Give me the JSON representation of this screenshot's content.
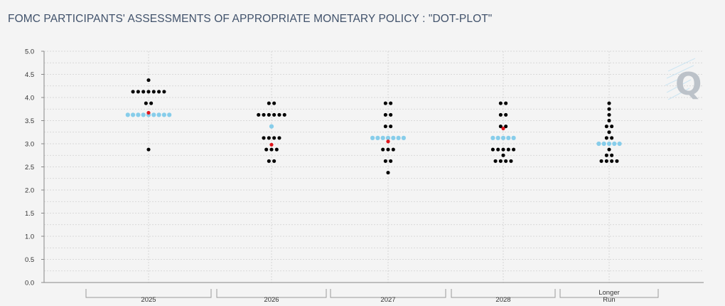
{
  "page": {
    "title": "FOMC PARTICIPANTS' ASSESSMENTS OF APPROPRIATE MONETARY POLICY : \"DOT-PLOT\"",
    "logo_text": "Q"
  },
  "colors": {
    "dot": "#000000",
    "median": "#87cdea",
    "futures": "#e0161c",
    "grid": "#cfcfcf",
    "title": "#41526b"
  },
  "chart_data": {
    "type": "scatter",
    "title": "FOMC PARTICIPANTS' ASSESSMENTS OF APPROPRIATE MONETARY POLICY : \"DOT-PLOT\"",
    "xlabel": "",
    "ylabel": "",
    "ylim": [
      0,
      5
    ],
    "yticks": [
      "0.0",
      "0.5",
      "1.0",
      "1.5",
      "2.0",
      "2.5",
      "3.0",
      "3.5",
      "4.0",
      "4.5",
      "5.0"
    ],
    "categories": [
      "2025",
      "2026",
      "2027",
      "2028",
      "Longer Run"
    ],
    "category_labels": [
      [
        "2025"
      ],
      [
        "2026"
      ],
      [
        "2027"
      ],
      [
        "2028"
      ],
      [
        "Longer",
        "Run"
      ]
    ],
    "grid": true,
    "series": [
      {
        "kind": "participants",
        "points": [
          {
            "x": "2025",
            "y": 4.375,
            "count": 1
          },
          {
            "x": "2025",
            "y": 4.125,
            "count": 7
          },
          {
            "x": "2025",
            "y": 3.875,
            "count": 2
          },
          {
            "x": "2025",
            "y": 3.625,
            "count": 9
          },
          {
            "x": "2025",
            "y": 2.875,
            "count": 1
          },
          {
            "x": "2026",
            "y": 3.875,
            "count": 2
          },
          {
            "x": "2026",
            "y": 3.625,
            "count": 6
          },
          {
            "x": "2026",
            "y": 3.375,
            "count": 1
          },
          {
            "x": "2026",
            "y": 3.125,
            "count": 4
          },
          {
            "x": "2026",
            "y": 2.875,
            "count": 3
          },
          {
            "x": "2026",
            "y": 2.625,
            "count": 2
          },
          {
            "x": "2027",
            "y": 3.875,
            "count": 2
          },
          {
            "x": "2027",
            "y": 3.625,
            "count": 2
          },
          {
            "x": "2027",
            "y": 3.375,
            "count": 2
          },
          {
            "x": "2027",
            "y": 3.125,
            "count": 7
          },
          {
            "x": "2027",
            "y": 2.875,
            "count": 3
          },
          {
            "x": "2027",
            "y": 2.625,
            "count": 2
          },
          {
            "x": "2027",
            "y": 2.375,
            "count": 1
          },
          {
            "x": "2028",
            "y": 3.875,
            "count": 2
          },
          {
            "x": "2028",
            "y": 3.625,
            "count": 2
          },
          {
            "x": "2028",
            "y": 3.375,
            "count": 2
          },
          {
            "x": "2028",
            "y": 3.125,
            "count": 5
          },
          {
            "x": "2028",
            "y": 2.875,
            "count": 5
          },
          {
            "x": "2028",
            "y": 2.75,
            "count": 1
          },
          {
            "x": "2028",
            "y": 2.625,
            "count": 4
          },
          {
            "x": "Longer Run",
            "y": 3.875,
            "count": 1
          },
          {
            "x": "Longer Run",
            "y": 3.75,
            "count": 1
          },
          {
            "x": "Longer Run",
            "y": 3.625,
            "count": 1
          },
          {
            "x": "Longer Run",
            "y": 3.5,
            "count": 1
          },
          {
            "x": "Longer Run",
            "y": 3.375,
            "count": 2
          },
          {
            "x": "Longer Run",
            "y": 3.25,
            "count": 1
          },
          {
            "x": "Longer Run",
            "y": 3.125,
            "count": 2
          },
          {
            "x": "Longer Run",
            "y": 3.0,
            "count": 5
          },
          {
            "x": "Longer Run",
            "y": 2.875,
            "count": 1
          },
          {
            "x": "Longer Run",
            "y": 2.75,
            "count": 2
          },
          {
            "x": "Longer Run",
            "y": 2.625,
            "count": 4
          }
        ]
      },
      {
        "kind": "median",
        "color": "#87cdea",
        "points": [
          {
            "x": "2025",
            "y": 3.625
          },
          {
            "x": "2026",
            "y": 3.375
          },
          {
            "x": "2027",
            "y": 3.125
          },
          {
            "x": "2028",
            "y": 3.125
          },
          {
            "x": "Longer Run",
            "y": 3.0
          }
        ]
      },
      {
        "kind": "highlight",
        "color": "#e0161c",
        "points": [
          {
            "x": "2025",
            "y": 3.67
          },
          {
            "x": "2026",
            "y": 2.98
          },
          {
            "x": "2027",
            "y": 3.05
          },
          {
            "x": "2028",
            "y": 3.33
          }
        ]
      }
    ]
  }
}
